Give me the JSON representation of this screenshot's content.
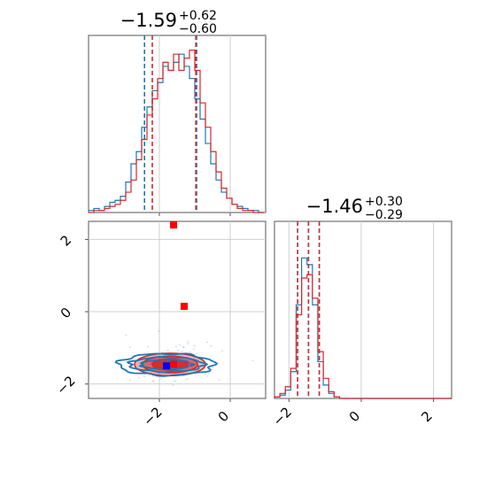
{
  "chart_data": {
    "type": "corner",
    "parameters": [
      {
        "title": {
          "median": "−1.59",
          "upper": "+0.62",
          "lower": "−0.60"
        },
        "xlim": [
          -4,
          1
        ],
        "xticks": [
          -2,
          0
        ],
        "xtick_labels": [
          "−2",
          "0"
        ]
      },
      {
        "title": {
          "median": "−1.46",
          "upper": "+0.30",
          "lower": "−0.29"
        },
        "xlim": [
          -2.4,
          2.5
        ],
        "xticks": [
          -2,
          0,
          2
        ],
        "xtick_labels": [
          "−2",
          "0",
          "2"
        ],
        "ylim": [
          -2.4,
          2.5
        ],
        "yticks": [
          -2,
          0,
          2
        ],
        "ytick_labels": [
          "−2",
          "0",
          "2"
        ]
      }
    ],
    "series": [
      {
        "color": "#1f77b4",
        "hist1_bins": [
          -4,
          -3.85,
          -3.7,
          -3.55,
          -3.4,
          -3.25,
          -3.1,
          -2.95,
          -2.8,
          -2.65,
          -2.5,
          -2.35,
          -2.2,
          -2.05,
          -1.9,
          -1.75,
          -1.6,
          -1.45,
          -1.3,
          -1.15,
          -1.0,
          -0.85,
          -0.7,
          -0.55,
          -0.4,
          -0.25,
          -0.1,
          0.05,
          0.2,
          0.35,
          0.5,
          0.65,
          0.8,
          0.95
        ],
        "hist1_counts": [
          1,
          2,
          1,
          3,
          5,
          6,
          8,
          15,
          24,
          30,
          42,
          52,
          60,
          64,
          72,
          70,
          74,
          78,
          72,
          66,
          56,
          46,
          34,
          24,
          16,
          10,
          7,
          4,
          3,
          2,
          1,
          1,
          0
        ],
        "hist1_quantiles": [
          -2.42,
          -1.59,
          -0.95
        ],
        "hist2_bins": [
          -2.4,
          -2.25,
          -2.1,
          -1.95,
          -1.8,
          -1.65,
          -1.5,
          -1.35,
          -1.2,
          -1.05,
          -0.9,
          -0.75,
          -0.6,
          -0.45
        ],
        "hist2_counts": [
          1,
          2,
          5,
          16,
          56,
          84,
          80,
          56,
          22,
          8,
          3,
          1,
          0
        ],
        "hist2_quantiles": [
          -1.76,
          -1.46,
          -1.16
        ],
        "contour_center": [
          -1.8,
          -1.46
        ],
        "point": [
          -1.8,
          -1.5
        ]
      },
      {
        "color": "#d62728",
        "hist1_bins": [
          -4,
          -3.85,
          -3.7,
          -3.55,
          -3.4,
          -3.25,
          -3.1,
          -2.95,
          -2.8,
          -2.65,
          -2.5,
          -2.35,
          -2.2,
          -2.05,
          -1.9,
          -1.75,
          -1.6,
          -1.45,
          -1.3,
          -1.15,
          -1.0,
          -0.85,
          -0.7,
          -0.55,
          -0.4,
          -0.25,
          -0.1,
          0.05,
          0.2,
          0.35,
          0.5,
          0.65,
          0.8,
          0.95
        ],
        "hist1_counts": [
          0,
          1,
          1,
          2,
          3,
          4,
          6,
          10,
          16,
          26,
          36,
          48,
          56,
          66,
          74,
          70,
          78,
          70,
          76,
          80,
          70,
          54,
          42,
          30,
          20,
          12,
          7,
          4,
          2,
          1,
          1,
          0,
          0
        ],
        "hist1_quantiles": [
          -2.2,
          -1.59,
          -0.97
        ],
        "hist2_bins": [
          -2.4,
          -2.25,
          -2.1,
          -1.95,
          -1.8,
          -1.65,
          -1.5,
          -1.35,
          -1.2,
          -1.05,
          -0.9,
          -0.75,
          -0.6,
          -0.45
        ],
        "hist2_counts": [
          1,
          3,
          7,
          18,
          50,
          72,
          74,
          60,
          28,
          12,
          4,
          1,
          0
        ],
        "hist2_quantiles": [
          -1.76,
          -1.46,
          -1.16
        ],
        "contour_center": [
          -1.7,
          -1.46
        ],
        "extra_points": [
          [
            -1.6,
            2.4
          ],
          [
            -1.3,
            0.15
          ],
          [
            -1.6,
            -1.45
          ]
        ]
      }
    ]
  }
}
